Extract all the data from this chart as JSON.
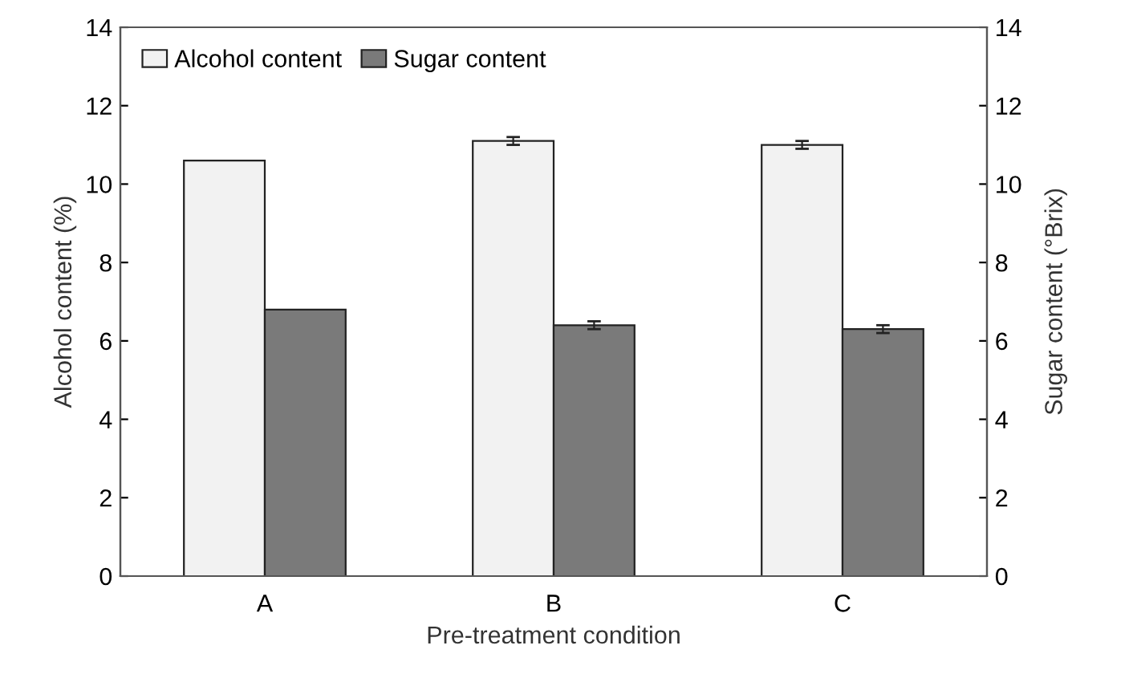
{
  "chart_data": {
    "type": "bar",
    "xlabel": "Pre-treatment condition",
    "ylabel": "Alcohol content (%)",
    "y2label": "Sugar content (°Brix)",
    "categories": [
      "A",
      "B",
      "C"
    ],
    "series": [
      {
        "name": "Alcohol content",
        "color": "#f2f2f2",
        "values": [
          10.6,
          11.1,
          11.0
        ],
        "errors": [
          null,
          0.1,
          0.1
        ]
      },
      {
        "name": "Sugar content",
        "color": "#7a7a7a",
        "values": [
          6.8,
          6.4,
          6.3
        ],
        "errors": [
          null,
          0.1,
          0.1
        ]
      }
    ],
    "ylim": [
      0,
      14
    ],
    "yticks": [
      0,
      2,
      4,
      6,
      8,
      10,
      12,
      14
    ],
    "y2lim": [
      0,
      14
    ],
    "y2ticks": [
      0,
      2,
      4,
      6,
      8,
      10,
      12,
      14
    ],
    "legend": "top left",
    "grid": false
  }
}
